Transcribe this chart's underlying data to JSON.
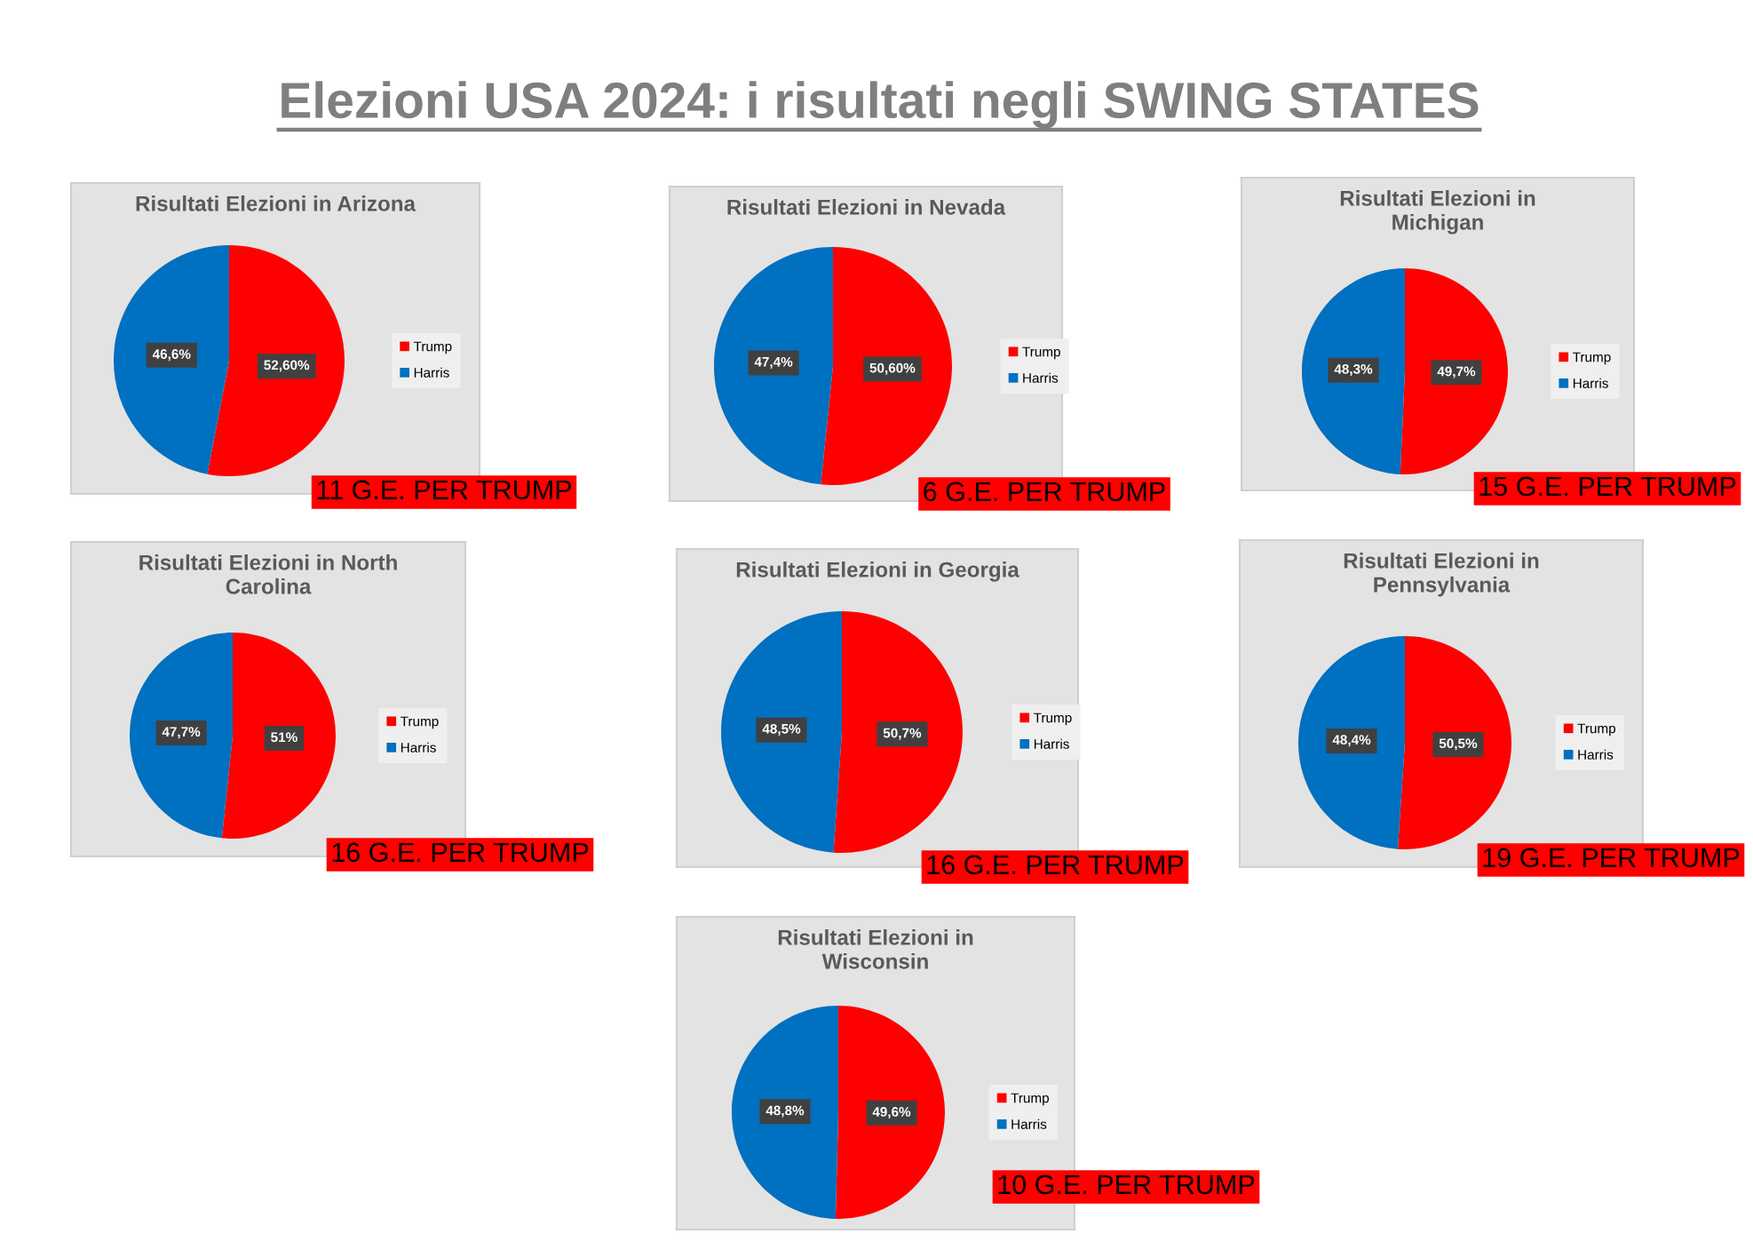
{
  "chart_data": [
    {
      "type": "other",
      "title": "Elezioni USA 2024: i risultati negli SWING STATES"
    },
    {
      "type": "pie",
      "title": "Risultati Elezioni in Arizona",
      "categories": [
        "Trump",
        "Harris"
      ],
      "values": [
        52.6,
        46.6
      ],
      "colors": [
        "#ff0000",
        "#0070c0"
      ],
      "value_labels": [
        "52,60%",
        "46,6%"
      ],
      "legend": "right",
      "annotations": [
        "11 G.E. PER TRUMP"
      ]
    },
    {
      "type": "pie",
      "title": "Risultati Elezioni in Nevada",
      "categories": [
        "Trump",
        "Harris"
      ],
      "values": [
        50.6,
        47.4
      ],
      "colors": [
        "#ff0000",
        "#0070c0"
      ],
      "value_labels": [
        "50,60%",
        "47,4%"
      ],
      "legend": "right",
      "annotations": [
        "6 G.E. PER TRUMP"
      ]
    },
    {
      "type": "pie",
      "title": "Risultati Elezioni in Michigan",
      "categories": [
        "Trump",
        "Harris"
      ],
      "values": [
        49.7,
        48.3
      ],
      "colors": [
        "#ff0000",
        "#0070c0"
      ],
      "value_labels": [
        "49,7%",
        "48,3%"
      ],
      "legend": "right",
      "annotations": [
        "15 G.E. PER TRUMP"
      ]
    },
    {
      "type": "pie",
      "title": "Risultati Elezioni in North Carolina",
      "categories": [
        "Trump",
        "Harris"
      ],
      "values": [
        51,
        47.7
      ],
      "colors": [
        "#ff0000",
        "#0070c0"
      ],
      "value_labels": [
        "51%",
        "47,7%"
      ],
      "legend": "right",
      "annotations": [
        "16 G.E. PER TRUMP"
      ]
    },
    {
      "type": "pie",
      "title": "Risultati Elezioni in Georgia",
      "categories": [
        "Trump",
        "Harris"
      ],
      "values": [
        50.7,
        48.5
      ],
      "colors": [
        "#ff0000",
        "#0070c0"
      ],
      "value_labels": [
        "50,7%",
        "48,5%"
      ],
      "legend": "right",
      "annotations": [
        "16 G.E. PER TRUMP"
      ]
    },
    {
      "type": "pie",
      "title": "Risultati Elezioni in Pennsylvania",
      "categories": [
        "Trump",
        "Harris"
      ],
      "values": [
        50.5,
        48.4
      ],
      "colors": [
        "#ff0000",
        "#0070c0"
      ],
      "value_labels": [
        "50,5%",
        "48,4%"
      ],
      "legend": "right",
      "annotations": [
        "19 G.E. PER TRUMP"
      ]
    },
    {
      "type": "pie",
      "title": "Risultati Elezioni in Wisconsin",
      "categories": [
        "Trump",
        "Harris"
      ],
      "values": [
        49.6,
        48.8
      ],
      "colors": [
        "#ff0000",
        "#0070c0"
      ],
      "value_labels": [
        "49,6%",
        "48,8%"
      ],
      "legend": "right",
      "annotations": [
        "10 G.E. PER TRUMP"
      ]
    }
  ]
}
